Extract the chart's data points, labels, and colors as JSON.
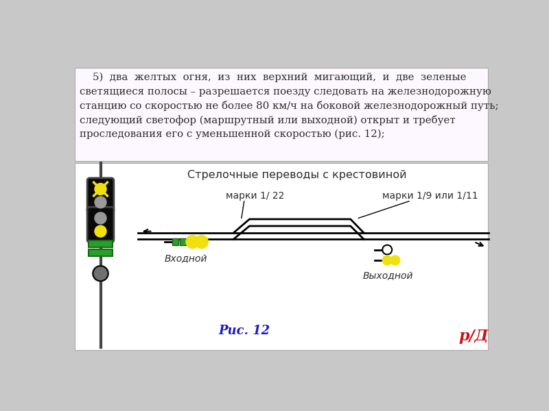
{
  "bg_color": "#c8c8c8",
  "text_panel_bg": "#fdf8ff",
  "diag_panel_bg": "#ffffff",
  "text_color": "#2c2c2c",
  "title_text_line1": "    5)  два  желтых  огня,  из  них  верхний  мигающий,  и  две  зеленые",
  "title_text_line2": "светящиеся полосы – разрешается поезду следовать на железнодорожную",
  "title_text_line3": "станцию со скоростью не более 80 км/ч на боковой железнодорожный путь;",
  "title_text_line4": "следующий светофор (маршрутный или выходной) открыт и требует",
  "title_text_line5": "проследования его с уменьшенной скоростью (рис. 12);",
  "diagram_title": "Стрелочные переводы с крестовиной",
  "label_marki1": "марки 1/ 22",
  "label_marki2": "марки 1/9 или 1/11",
  "label_vhodnoy": "Входной",
  "label_vyhodnoy": "Выходной",
  "label_ris": "Рис. 12",
  "logo_text": "р/Д",
  "yellow": "#f0e010",
  "green": "#28a028",
  "black": "#0a0a0a",
  "dark_gray": "#444444",
  "light_gray": "#999999",
  "mid_gray": "#707070",
  "red_logo": "#cc1111",
  "blue_label": "#1a1acc",
  "panel_border": "#aaaaaa"
}
